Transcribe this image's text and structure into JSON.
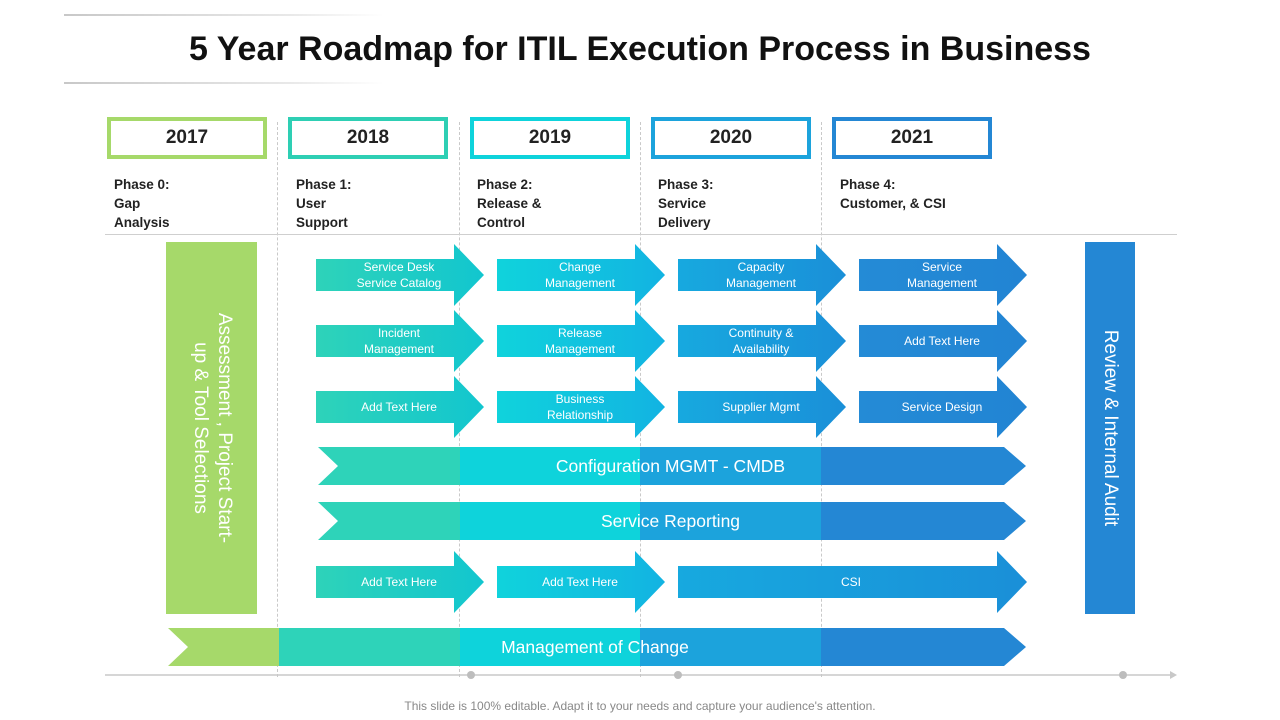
{
  "title": "5 Year Roadmap for ITIL Execution Process in Business",
  "years": [
    {
      "label": "2017",
      "color": "#a6d96a"
    },
    {
      "label": "2018",
      "color": "#2ecfb4"
    },
    {
      "label": "2019",
      "color": "#0ed3db"
    },
    {
      "label": "2020",
      "color": "#1ca3dc"
    },
    {
      "label": "2021",
      "color": "#2487d4"
    }
  ],
  "phases": [
    {
      "lines": [
        "Phase 0:",
        "Gap",
        "Analysis"
      ]
    },
    {
      "lines": [
        "Phase 1:",
        "User",
        "Support"
      ]
    },
    {
      "lines": [
        "Phase 2:",
        "Release &",
        "Control"
      ]
    },
    {
      "lines": [
        "Phase 3:",
        "Service",
        "Delivery"
      ]
    },
    {
      "lines": [
        "Phase 4:",
        "Customer, & CSI"
      ]
    }
  ],
  "left_panel": {
    "lines": [
      "Assessment , Project Start-",
      "up & Tool Selections"
    ],
    "color": "#a6d96a"
  },
  "right_panel": {
    "label": "Review & Internal Audit",
    "color": "#2487d4"
  },
  "arrows": {
    "row1": [
      "Service Desk\nService Catalog",
      "Change\nManagement",
      "Capacity\nManagement",
      "Service\nManagement"
    ],
    "row2": [
      "Incident\nManagement",
      "Release\nManagement",
      "Continuity &\nAvailability",
      "Add Text Here"
    ],
    "row3": [
      "Add Text Here",
      "Business\nRelationship",
      "Supplier Mgmt",
      "Service Design"
    ],
    "row6": [
      "Add Text Here",
      "Add Text Here"
    ],
    "csi": "CSI"
  },
  "bands": {
    "config": "Configuration MGMT - CMDB",
    "reporting": "Service Reporting",
    "change": "Management of Change"
  },
  "footer": "This slide is 100% editable. Adapt it to your needs and capture your audience's attention."
}
